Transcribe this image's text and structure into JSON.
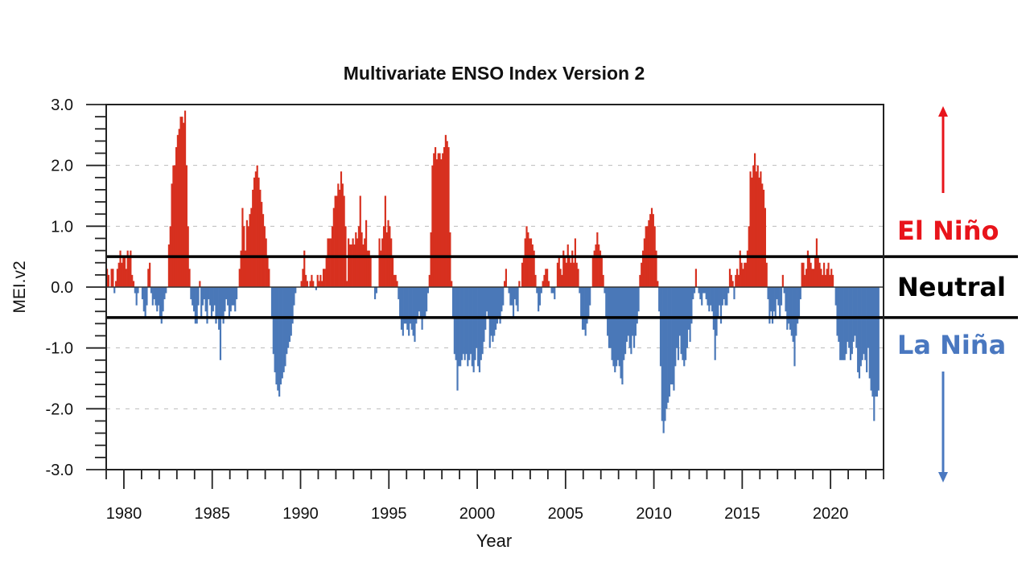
{
  "chart_data": {
    "type": "bar",
    "title": "Multivariate ENSO Index Version 2",
    "xlabel": "Year",
    "ylabel": "MEI.v2",
    "xlim": [
      1979,
      2023
    ],
    "ylim": [
      -3.0,
      3.0
    ],
    "yticks": [
      3.0,
      2.0,
      1.0,
      0.0,
      -1.0,
      -2.0,
      -3.0
    ],
    "ytick_labels": [
      "3.0",
      "2.0",
      "1.0",
      "0.0",
      "-1.0",
      "-2.0",
      "-3.0"
    ],
    "xticks": [
      1980,
      1985,
      1990,
      1995,
      2000,
      2005,
      2010,
      2015,
      2020
    ],
    "xtick_labels": [
      "1980",
      "1985",
      "1990",
      "1995",
      "2000",
      "2005",
      "2010",
      "2015",
      "2020"
    ],
    "grid": "horizontal dashed at major y ticks",
    "positive_color": "#d7301f",
    "negative_color": "#4a78b8",
    "start_year": 1979,
    "values_per_year": 12,
    "series": [
      {
        "name": "MEI.v2 (bimonthly)",
        "values_by_year": {
          "1979": [
            0.3,
            0.2,
            0.0,
            0.3,
            0.3,
            -0.1,
            0.1,
            0.3,
            0.4,
            0.6,
            0.4,
            0.5
          ],
          "1980": [
            0.5,
            0.3,
            0.6,
            0.5,
            0.6,
            0.2,
            0.1,
            -0.1,
            -0.3,
            -0.1,
            0.0,
            0.0
          ],
          "1981": [
            -0.2,
            -0.4,
            -0.5,
            -0.3,
            0.3,
            0.4,
            -0.1,
            -0.3,
            -0.2,
            -0.3,
            -0.4,
            -0.3
          ],
          "1982": [
            -0.5,
            -0.6,
            -0.4,
            -0.2,
            -0.1,
            0.0,
            0.7,
            1.0,
            1.7,
            2.0,
            2.0,
            2.3
          ],
          "1983": [
            2.5,
            2.6,
            2.8,
            2.8,
            2.7,
            2.9,
            2.0,
            1.0,
            0.3,
            -0.2,
            -0.3,
            -0.4
          ],
          "1984": [
            -0.6,
            -0.6,
            -0.3,
            0.1,
            -0.5,
            -0.3,
            -0.2,
            -0.4,
            -0.6,
            -0.2,
            -0.3,
            -0.5
          ],
          "1985": [
            -0.4,
            -0.3,
            -0.6,
            -0.5,
            -0.7,
            -1.2,
            -0.5,
            -0.6,
            -0.4,
            -0.2,
            -0.3,
            -0.5
          ],
          "1986": [
            -0.4,
            -0.3,
            -0.3,
            -0.4,
            -0.2,
            0.0,
            0.3,
            0.6,
            1.3,
            1.0,
            0.6,
            1.1
          ],
          "1987": [
            1.0,
            1.2,
            1.3,
            1.6,
            1.8,
            1.9,
            2.0,
            1.8,
            1.6,
            1.4,
            1.2,
            1.0
          ],
          "1988": [
            0.8,
            0.5,
            0.3,
            0.0,
            -0.5,
            -1.1,
            -1.4,
            -1.6,
            -1.7,
            -1.8,
            -1.6,
            -1.5
          ],
          "1989": [
            -1.4,
            -1.3,
            -1.1,
            -1.0,
            -0.9,
            -0.8,
            -0.6,
            -0.3,
            -0.1,
            0.0,
            0.0,
            0.0
          ],
          "1990": [
            0.1,
            0.3,
            0.6,
            0.2,
            0.1,
            0.0,
            0.1,
            0.2,
            0.1,
            0.0,
            -0.05,
            0.2
          ],
          "1991": [
            0.1,
            0.2,
            0.1,
            0.3,
            0.3,
            0.5,
            0.8,
            0.8,
            0.8,
            1.0,
            1.3,
            1.5
          ],
          "1992": [
            1.5,
            1.7,
            1.6,
            1.9,
            1.7,
            1.5,
            1.0,
            0.1,
            0.8,
            0.7,
            0.7,
            0.8
          ],
          "1993": [
            0.7,
            0.9,
            0.8,
            1.0,
            1.5,
            0.9,
            0.7,
            0.8,
            1.1,
            0.6,
            0.6,
            0.5
          ],
          "1994": [
            0.0,
            0.0,
            -0.2,
            -0.1,
            0.0,
            0.8,
            0.6,
            0.8,
            1.0,
            1.5,
            0.9,
            1.1
          ],
          "1995": [
            1.0,
            0.8,
            0.5,
            0.2,
            0.2,
            0.1,
            -0.2,
            -0.5,
            -0.7,
            -0.8,
            -0.6,
            -0.6
          ],
          "1996": [
            -0.7,
            -0.8,
            -0.6,
            -0.7,
            -0.8,
            -0.9,
            -0.6,
            -0.5,
            -0.4,
            -0.5,
            -0.7,
            -0.5
          ],
          "1997": [
            -0.5,
            -0.4,
            -0.1,
            0.2,
            0.9,
            2.0,
            2.2,
            2.3,
            2.1,
            2.2,
            2.2,
            2.1
          ],
          "1998": [
            2.2,
            2.3,
            2.5,
            2.4,
            2.3,
            0.9,
            0.1,
            -0.5,
            -1.1,
            -1.2,
            -1.7,
            -1.3
          ],
          "1999": [
            -1.3,
            -1.2,
            -1.1,
            -1.2,
            -1.1,
            -1.3,
            -1.2,
            -1.1,
            -1.3,
            -1.4,
            -1.2,
            -1.0
          ],
          "2000": [
            -1.3,
            -1.4,
            -1.2,
            -1.1,
            -0.9,
            -0.7,
            -0.4,
            -0.5,
            -1.0,
            -0.8,
            -0.9,
            -0.8
          ],
          "2001": [
            -0.7,
            -0.6,
            -0.5,
            -0.6,
            -0.4,
            -0.3,
            0.1,
            0.3,
            0.0,
            -0.1,
            -0.3,
            -0.3
          ],
          "2002": [
            -0.5,
            -0.2,
            -0.3,
            -0.4,
            0.1,
            0.0,
            0.4,
            0.5,
            0.8,
            1.0,
            0.9,
            0.8
          ],
          "2003": [
            0.8,
            0.7,
            0.6,
            0.2,
            -0.1,
            -0.4,
            -0.3,
            -0.1,
            0.1,
            0.2,
            0.3,
            0.3
          ],
          "2004": [
            0.1,
            0.0,
            -0.1,
            -0.1,
            -0.2,
            0.0,
            0.4,
            0.5,
            0.3,
            0.2,
            0.6,
            0.5
          ],
          "2005": [
            0.4,
            0.7,
            0.5,
            0.4,
            0.6,
            0.4,
            0.8,
            0.4,
            0.3,
            -0.1,
            -0.5,
            -0.7
          ],
          "2006": [
            -0.7,
            -0.8,
            -0.6,
            -0.5,
            -0.3,
            0.0,
            0.5,
            0.6,
            0.7,
            0.9,
            0.7,
            0.6
          ],
          "2007": [
            0.5,
            0.2,
            -0.1,
            -0.5,
            -0.8,
            -1.0,
            -1.0,
            -1.2,
            -1.3,
            -1.4,
            -1.3,
            -1.2
          ],
          "2008": [
            -1.3,
            -1.5,
            -1.6,
            -1.2,
            -1.1,
            -0.9,
            -0.8,
            -1.0,
            -1.1,
            -0.8,
            -1.0,
            -0.8
          ],
          "2009": [
            -0.6,
            -0.4,
            0.2,
            0.4,
            0.6,
            0.8,
            1.0,
            1.0,
            1.1,
            1.2,
            1.3,
            1.2
          ],
          "2010": [
            1.0,
            0.6,
            0.1,
            -0.4,
            -1.3,
            -2.2,
            -2.4,
            -2.2,
            -2.0,
            -1.9,
            -1.8,
            -1.6
          ],
          "2011": [
            -1.6,
            -1.7,
            -1.3,
            -1.0,
            -1.2,
            -0.8,
            -1.1,
            -1.2,
            -1.3,
            -1.2,
            -1.0,
            -0.7
          ],
          "2012": [
            -0.9,
            -0.6,
            -0.2,
            -0.1,
            0.3,
            0.0,
            -0.1,
            -0.2,
            -0.3,
            -0.1,
            -0.1,
            -0.2
          ],
          "2013": [
            -0.3,
            -0.4,
            -0.3,
            -0.4,
            -0.7,
            -1.2,
            -0.8,
            -0.5,
            -0.3,
            -0.6,
            -0.3,
            -0.2
          ],
          "2014": [
            -0.3,
            -0.3,
            -0.1,
            0.3,
            0.2,
            0.1,
            -0.2,
            0.2,
            0.3,
            0.2,
            0.6,
            0.4
          ],
          "2015": [
            0.3,
            0.4,
            0.4,
            0.6,
            1.0,
            1.9,
            1.8,
            2.0,
            2.2,
            1.9,
            2.0,
            1.8
          ],
          "2016": [
            1.9,
            1.7,
            1.6,
            1.3,
            0.4,
            -0.2,
            -0.6,
            -0.4,
            -0.6,
            -0.4,
            -0.5,
            -0.2
          ],
          "2017": [
            -0.3,
            -0.5,
            -0.3,
            0.2,
            -0.1,
            -0.4,
            -0.7,
            -0.6,
            -0.7,
            -0.8,
            -0.9,
            -1.3
          ],
          "2018": [
            -0.8,
            -0.6,
            -0.5,
            -0.2,
            0.4,
            0.4,
            0.2,
            0.3,
            0.6,
            0.5,
            0.4,
            0.3
          ],
          "2019": [
            0.3,
            0.5,
            0.8,
            0.5,
            0.4,
            0.3,
            0.2,
            0.4,
            0.2,
            0.3,
            0.4,
            0.2
          ],
          "2020": [
            0.3,
            0.2,
            0.0,
            -0.3,
            -0.8,
            -0.9,
            -1.2,
            -1.2,
            -1.2,
            -1.2,
            -1.1,
            -0.9
          ],
          "2021": [
            -1.0,
            -1.2,
            -1.1,
            -0.9,
            -0.8,
            -1.0,
            -1.4,
            -1.5,
            -1.3,
            -1.2,
            -1.1,
            -1.2
          ],
          "2022": [
            -1.4,
            -1.0,
            -1.5,
            -1.7,
            -1.8,
            -2.2,
            -1.8,
            -1.8,
            -1.7
          ]
        }
      }
    ],
    "threshold_lines": [
      {
        "name": "el-nino-threshold",
        "value": 0.5
      },
      {
        "name": "la-nina-threshold",
        "value": -0.5
      }
    ],
    "annotations": [
      {
        "name": "el-nino",
        "text": "El Niño",
        "color": "#e8141b"
      },
      {
        "name": "neutral",
        "text": "Neutral",
        "color": "#000000"
      },
      {
        "name": "la-nina",
        "text": "La Niña",
        "color": "#4a78c0"
      }
    ],
    "arrows": [
      {
        "name": "el-nino-arrow",
        "direction": "up",
        "color": "#e8141b"
      },
      {
        "name": "la-nina-arrow",
        "direction": "down",
        "color": "#4a78c0"
      }
    ]
  }
}
